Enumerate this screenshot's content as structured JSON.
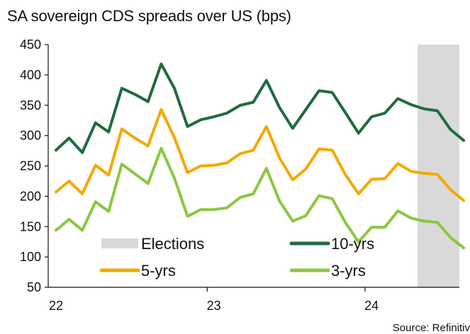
{
  "title": "SA sovereign CDS spreads over US (bps)",
  "source": "Source: Refinitiv",
  "chart_data": {
    "type": "line",
    "title": "SA sovereign CDS spreads over US (bps)",
    "xlabel": "",
    "ylabel": "",
    "ylim": [
      50,
      450
    ],
    "yticks": [
      50,
      100,
      150,
      200,
      250,
      300,
      350,
      400,
      450
    ],
    "xticks": [
      "22",
      "23",
      "24"
    ],
    "grid": false,
    "legend_position": "bottom-left",
    "x": [
      "2022-01",
      "2022-02",
      "2022-03",
      "2022-04",
      "2022-05",
      "2022-06",
      "2022-07",
      "2022-08",
      "2022-09",
      "2022-10",
      "2022-11",
      "2022-12",
      "2023-01",
      "2023-02",
      "2023-03",
      "2023-04",
      "2023-05",
      "2023-06",
      "2023-07",
      "2023-08",
      "2023-09",
      "2023-10",
      "2023-11",
      "2023-12",
      "2024-01",
      "2024-02",
      "2024-03",
      "2024-04",
      "2024-05",
      "2024-06",
      "2024-07",
      "2024-08"
    ],
    "shaded_region": {
      "name": "Elections",
      "start": "2024-05",
      "end": "2024-08",
      "color": "#d9d9d9"
    },
    "series": [
      {
        "name": "10-yrs",
        "color": "#1f6b3f",
        "values": [
          276,
          296,
          272,
          321,
          306,
          378,
          368,
          356,
          418,
          378,
          315,
          326,
          331,
          337,
          350,
          355,
          391,
          346,
          312,
          343,
          374,
          371,
          338,
          304,
          331,
          337,
          361,
          351,
          344,
          341,
          310,
          292
        ]
      },
      {
        "name": "5-yrs",
        "color": "#f2a900",
        "values": [
          207,
          225,
          204,
          251,
          235,
          311,
          296,
          283,
          343,
          297,
          239,
          250,
          251,
          255,
          270,
          276,
          315,
          263,
          227,
          245,
          278,
          276,
          236,
          204,
          228,
          229,
          254,
          241,
          238,
          236,
          211,
          193
        ]
      },
      {
        "name": "3-yrs",
        "color": "#8cc63f",
        "values": [
          144,
          162,
          144,
          191,
          175,
          253,
          237,
          221,
          279,
          230,
          167,
          178,
          178,
          181,
          198,
          204,
          246,
          192,
          159,
          168,
          201,
          196,
          157,
          125,
          149,
          149,
          176,
          164,
          159,
          157,
          132,
          115
        ]
      }
    ]
  }
}
